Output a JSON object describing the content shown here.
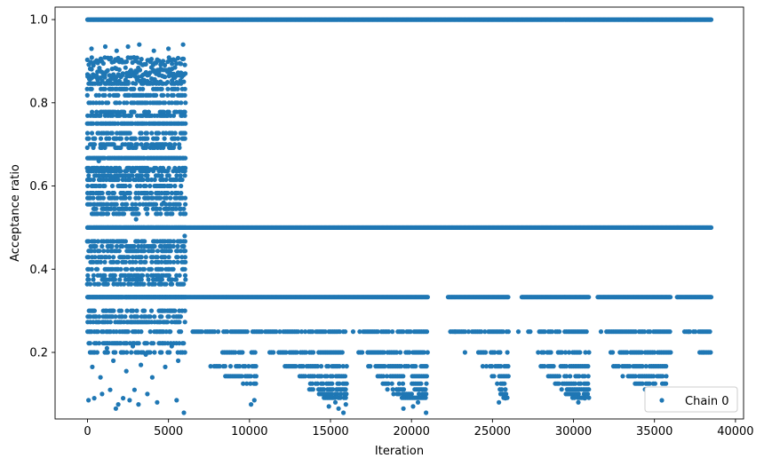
{
  "chart_data": {
    "type": "scatter",
    "title": "",
    "xlabel": "Iteration",
    "ylabel": "Acceptance ratio",
    "xlim": [
      -2000,
      40500
    ],
    "ylim": [
      0.04,
      1.03
    ],
    "xticks": [
      0,
      5000,
      10000,
      15000,
      20000,
      25000,
      30000,
      35000,
      40000
    ],
    "xtick_labels": [
      "0",
      "5000",
      "10000",
      "15000",
      "20000",
      "25000",
      "30000",
      "35000",
      "40000"
    ],
    "yticks": [
      0.2,
      0.4,
      0.6,
      0.8,
      1.0
    ],
    "ytick_labels": [
      "0.2",
      "0.4",
      "0.6",
      "0.8",
      "1.0"
    ],
    "grid": false,
    "legend": {
      "position": "lower-right",
      "entries": [
        "Chain 0"
      ]
    },
    "series": [
      {
        "name": "Chain 0",
        "color": "#1f77b4",
        "marker": "circle",
        "segments": [
          {
            "y": 1.0,
            "x_start": 0,
            "x_end": 38500
          },
          {
            "y": 0.5,
            "x_start": 0,
            "x_end": 38500
          },
          {
            "y": 0.333,
            "x_start": 0,
            "x_end": 38500,
            "gaps": [
              [
                21000,
                22200
              ],
              [
                26000,
                26800
              ],
              [
                31000,
                31500
              ],
              [
                36000,
                36400
              ]
            ]
          },
          {
            "y": 0.25,
            "x_start": 6500,
            "x_end": 38500,
            "gaps": [
              [
                16000,
                16800
              ],
              [
                21000,
                22200
              ],
              [
                26000,
                27000
              ],
              [
                31000,
                31600
              ],
              [
                36000,
                36800
              ]
            ]
          },
          {
            "y": 0.2,
            "x_start": 8000,
            "x_end": 38500,
            "gaps": [
              [
                10500,
                11200
              ],
              [
                16000,
                16700
              ],
              [
                21000,
                23800
              ],
              [
                26000,
                27800
              ],
              [
                31000,
                32200
              ],
              [
                36000,
                37700
              ]
            ]
          },
          {
            "y": 0.1667,
            "x_start": 7600,
            "x_end": 35800,
            "gaps": [
              [
                10500,
                12100
              ],
              [
                16000,
                17200
              ],
              [
                21000,
                24300
              ],
              [
                26000,
                27900
              ],
              [
                31000,
                32300
              ]
            ]
          },
          {
            "y": 0.1429,
            "x_start": 8400,
            "x_end": 35800,
            "gaps": [
              [
                10500,
                13000
              ],
              [
                16000,
                17900
              ],
              [
                21000,
                24800
              ],
              [
                26000,
                28400
              ],
              [
                31000,
                33000
              ]
            ]
          },
          {
            "y": 0.125,
            "x_start": 9500,
            "x_end": 35800,
            "gaps": [
              [
                10500,
                13600
              ],
              [
                16000,
                18200
              ],
              [
                21000,
                25100
              ],
              [
                26000,
                28800
              ],
              [
                31000,
                33700
              ]
            ]
          },
          {
            "y": 0.1111,
            "x_start": 13700,
            "x_end": 35800,
            "gaps": [
              [
                16000,
                18500
              ],
              [
                21000,
                25300
              ],
              [
                26000,
                29200
              ],
              [
                31000,
                34200
              ]
            ]
          },
          {
            "y": 0.1,
            "x_start": 14300,
            "x_end": 35800,
            "gaps": [
              [
                16000,
                18800
              ],
              [
                21000,
                25500
              ],
              [
                26000,
                29500
              ],
              [
                31000,
                34500
              ]
            ]
          },
          {
            "y": 0.0909,
            "x_start": 14600,
            "x_end": 35600,
            "gaps": [
              [
                16000,
                19200
              ],
              [
                21000,
                25600
              ],
              [
                26000,
                29700
              ],
              [
                31000,
                34800
              ]
            ]
          }
        ],
        "burnin_levels": [
          0.9,
          0.875,
          0.857,
          0.846,
          0.833,
          0.818,
          0.8,
          0.778,
          0.769,
          0.75,
          0.727,
          0.714,
          0.7,
          0.692,
          0.667,
          0.643,
          0.636,
          0.625,
          0.615,
          0.6,
          0.583,
          0.571,
          0.556,
          0.545,
          0.533,
          0.5,
          0.467,
          0.455,
          0.444,
          0.429,
          0.417,
          0.4,
          0.385,
          0.375,
          0.364,
          0.333,
          0.3,
          0.286,
          0.273,
          0.25,
          0.222,
          0.2
        ],
        "burnin_x_range": [
          0,
          6100
        ],
        "burnin_sparse_points": [
          [
            60,
            0.085
          ],
          [
            420,
            0.09
          ],
          [
            900,
            0.1
          ],
          [
            1400,
            0.11
          ],
          [
            1750,
            0.065
          ],
          [
            1900,
            0.075
          ],
          [
            2200,
            0.09
          ],
          [
            2600,
            0.085
          ],
          [
            2900,
            0.11
          ],
          [
            3150,
            0.075
          ],
          [
            3700,
            0.1
          ],
          [
            4300,
            0.08
          ],
          [
            5500,
            0.085
          ],
          [
            5950,
            0.055
          ],
          [
            300,
            0.165
          ],
          [
            800,
            0.14
          ],
          [
            1600,
            0.18
          ],
          [
            2400,
            0.155
          ],
          [
            3300,
            0.17
          ],
          [
            4000,
            0.14
          ],
          [
            4800,
            0.165
          ],
          [
            5600,
            0.18
          ],
          [
            600,
            0.2
          ],
          [
            1200,
            0.21
          ],
          [
            2800,
            0.215
          ],
          [
            3600,
            0.195
          ],
          [
            5200,
            0.215
          ],
          [
            250,
            0.93
          ],
          [
            1100,
            0.935
          ],
          [
            1800,
            0.925
          ],
          [
            2500,
            0.935
          ],
          [
            3200,
            0.94
          ],
          [
            4100,
            0.925
          ],
          [
            5000,
            0.93
          ],
          [
            5900,
            0.94
          ],
          [
            700,
            0.66
          ],
          [
            1500,
            0.62
          ],
          [
            2300,
            0.58
          ],
          [
            3000,
            0.52
          ],
          [
            3900,
            0.64
          ],
          [
            4700,
            0.56
          ],
          [
            5400,
            0.6
          ],
          [
            6000,
            0.48
          ]
        ],
        "late_sparse_points": [
          [
            10100,
            0.075
          ],
          [
            10300,
            0.085
          ],
          [
            14900,
            0.07
          ],
          [
            15300,
            0.08
          ],
          [
            15500,
            0.065
          ],
          [
            15800,
            0.055
          ],
          [
            15950,
            0.075
          ],
          [
            19500,
            0.065
          ],
          [
            20100,
            0.07
          ],
          [
            20400,
            0.08
          ],
          [
            20900,
            0.055
          ],
          [
            25400,
            0.08
          ],
          [
            25800,
            0.09
          ],
          [
            30300,
            0.08
          ],
          [
            30700,
            0.09
          ],
          [
            35200,
            0.08
          ],
          [
            35400,
            0.09
          ],
          [
            16400,
            0.25
          ],
          [
            22700,
            0.25
          ],
          [
            26600,
            0.25
          ],
          [
            38000,
            0.2
          ],
          [
            23300,
            0.2
          ],
          [
            37100,
            0.25
          ]
        ]
      }
    ]
  }
}
